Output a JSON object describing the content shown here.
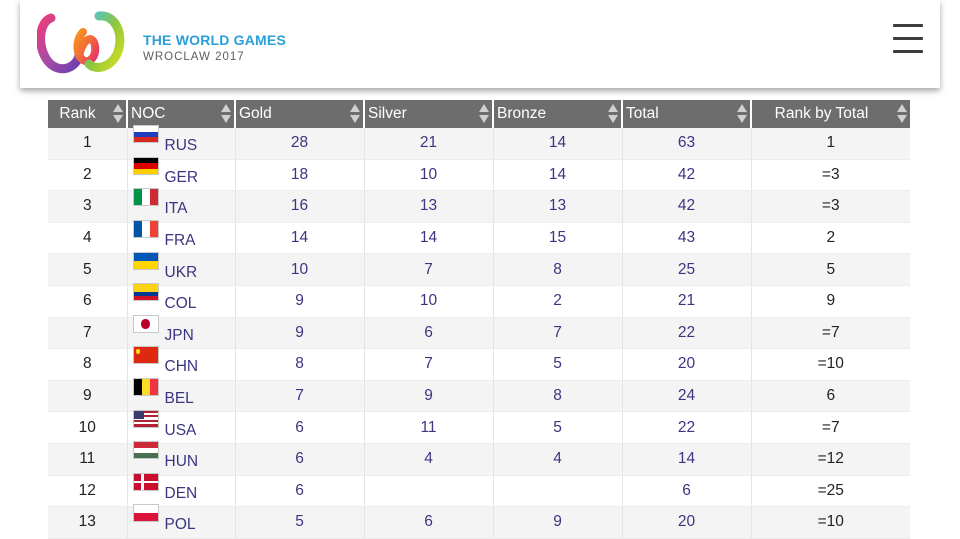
{
  "brand": {
    "title": "THE WORLD GAMES",
    "subtitle": "WROCLAW 2017"
  },
  "table": {
    "headers": [
      "Rank",
      "NOC",
      "Gold",
      "Silver",
      "Bronze",
      "Total",
      "Rank by Total"
    ],
    "rows": [
      {
        "rank": "1",
        "noc": "RUS",
        "gold": "28",
        "silver": "21",
        "bronze": "14",
        "total": "63",
        "rank_by_total": "1"
      },
      {
        "rank": "2",
        "noc": "GER",
        "gold": "18",
        "silver": "10",
        "bronze": "14",
        "total": "42",
        "rank_by_total": "=3"
      },
      {
        "rank": "3",
        "noc": "ITA",
        "gold": "16",
        "silver": "13",
        "bronze": "13",
        "total": "42",
        "rank_by_total": "=3"
      },
      {
        "rank": "4",
        "noc": "FRA",
        "gold": "14",
        "silver": "14",
        "bronze": "15",
        "total": "43",
        "rank_by_total": "2"
      },
      {
        "rank": "5",
        "noc": "UKR",
        "gold": "10",
        "silver": "7",
        "bronze": "8",
        "total": "25",
        "rank_by_total": "5"
      },
      {
        "rank": "6",
        "noc": "COL",
        "gold": "9",
        "silver": "10",
        "bronze": "2",
        "total": "21",
        "rank_by_total": "9"
      },
      {
        "rank": "7",
        "noc": "JPN",
        "gold": "9",
        "silver": "6",
        "bronze": "7",
        "total": "22",
        "rank_by_total": "=7"
      },
      {
        "rank": "8",
        "noc": "CHN",
        "gold": "8",
        "silver": "7",
        "bronze": "5",
        "total": "20",
        "rank_by_total": "=10"
      },
      {
        "rank": "9",
        "noc": "BEL",
        "gold": "7",
        "silver": "9",
        "bronze": "8",
        "total": "24",
        "rank_by_total": "6"
      },
      {
        "rank": "10",
        "noc": "USA",
        "gold": "6",
        "silver": "11",
        "bronze": "5",
        "total": "22",
        "rank_by_total": "=7"
      },
      {
        "rank": "11",
        "noc": "HUN",
        "gold": "6",
        "silver": "4",
        "bronze": "4",
        "total": "14",
        "rank_by_total": "=12"
      },
      {
        "rank": "12",
        "noc": "DEN",
        "gold": "6",
        "silver": "",
        "bronze": "",
        "total": "6",
        "rank_by_total": "=25"
      },
      {
        "rank": "13",
        "noc": "POL",
        "gold": "5",
        "silver": "6",
        "bronze": "9",
        "total": "20",
        "rank_by_total": "=10"
      }
    ]
  },
  "flags": {
    "RUS": {
      "type": "h3",
      "colors": [
        "#ffffff",
        "#1f3fbf",
        "#d52b1e"
      ]
    },
    "GER": {
      "type": "h3",
      "colors": [
        "#000000",
        "#dd0000",
        "#ffce00"
      ]
    },
    "ITA": {
      "type": "v3",
      "colors": [
        "#009246",
        "#ffffff",
        "#ce2b37"
      ]
    },
    "FRA": {
      "type": "v3",
      "colors": [
        "#0055a4",
        "#ffffff",
        "#ef4135"
      ]
    },
    "UKR": {
      "type": "h2",
      "colors": [
        "#0057b7",
        "#ffd700"
      ]
    },
    "COL": {
      "type": "col",
      "colors": [
        "#fcd116",
        "#003893",
        "#ce1126"
      ]
    },
    "JPN": {
      "type": "disc",
      "colors": [
        "#ffffff",
        "#bc002d"
      ]
    },
    "CHN": {
      "type": "china",
      "colors": [
        "#de2910",
        "#ffde00"
      ]
    },
    "BEL": {
      "type": "v3",
      "colors": [
        "#000000",
        "#fdda24",
        "#ef3340"
      ]
    },
    "USA": {
      "type": "usa",
      "colors": [
        "#b22234",
        "#ffffff",
        "#3c3b6e"
      ]
    },
    "HUN": {
      "type": "h3",
      "colors": [
        "#ce2939",
        "#ffffff",
        "#477050"
      ]
    },
    "DEN": {
      "type": "nordic",
      "colors": [
        "#c8102e",
        "#ffffff"
      ]
    },
    "POL": {
      "type": "h2",
      "colors": [
        "#ffffff",
        "#dc143c"
      ]
    }
  }
}
